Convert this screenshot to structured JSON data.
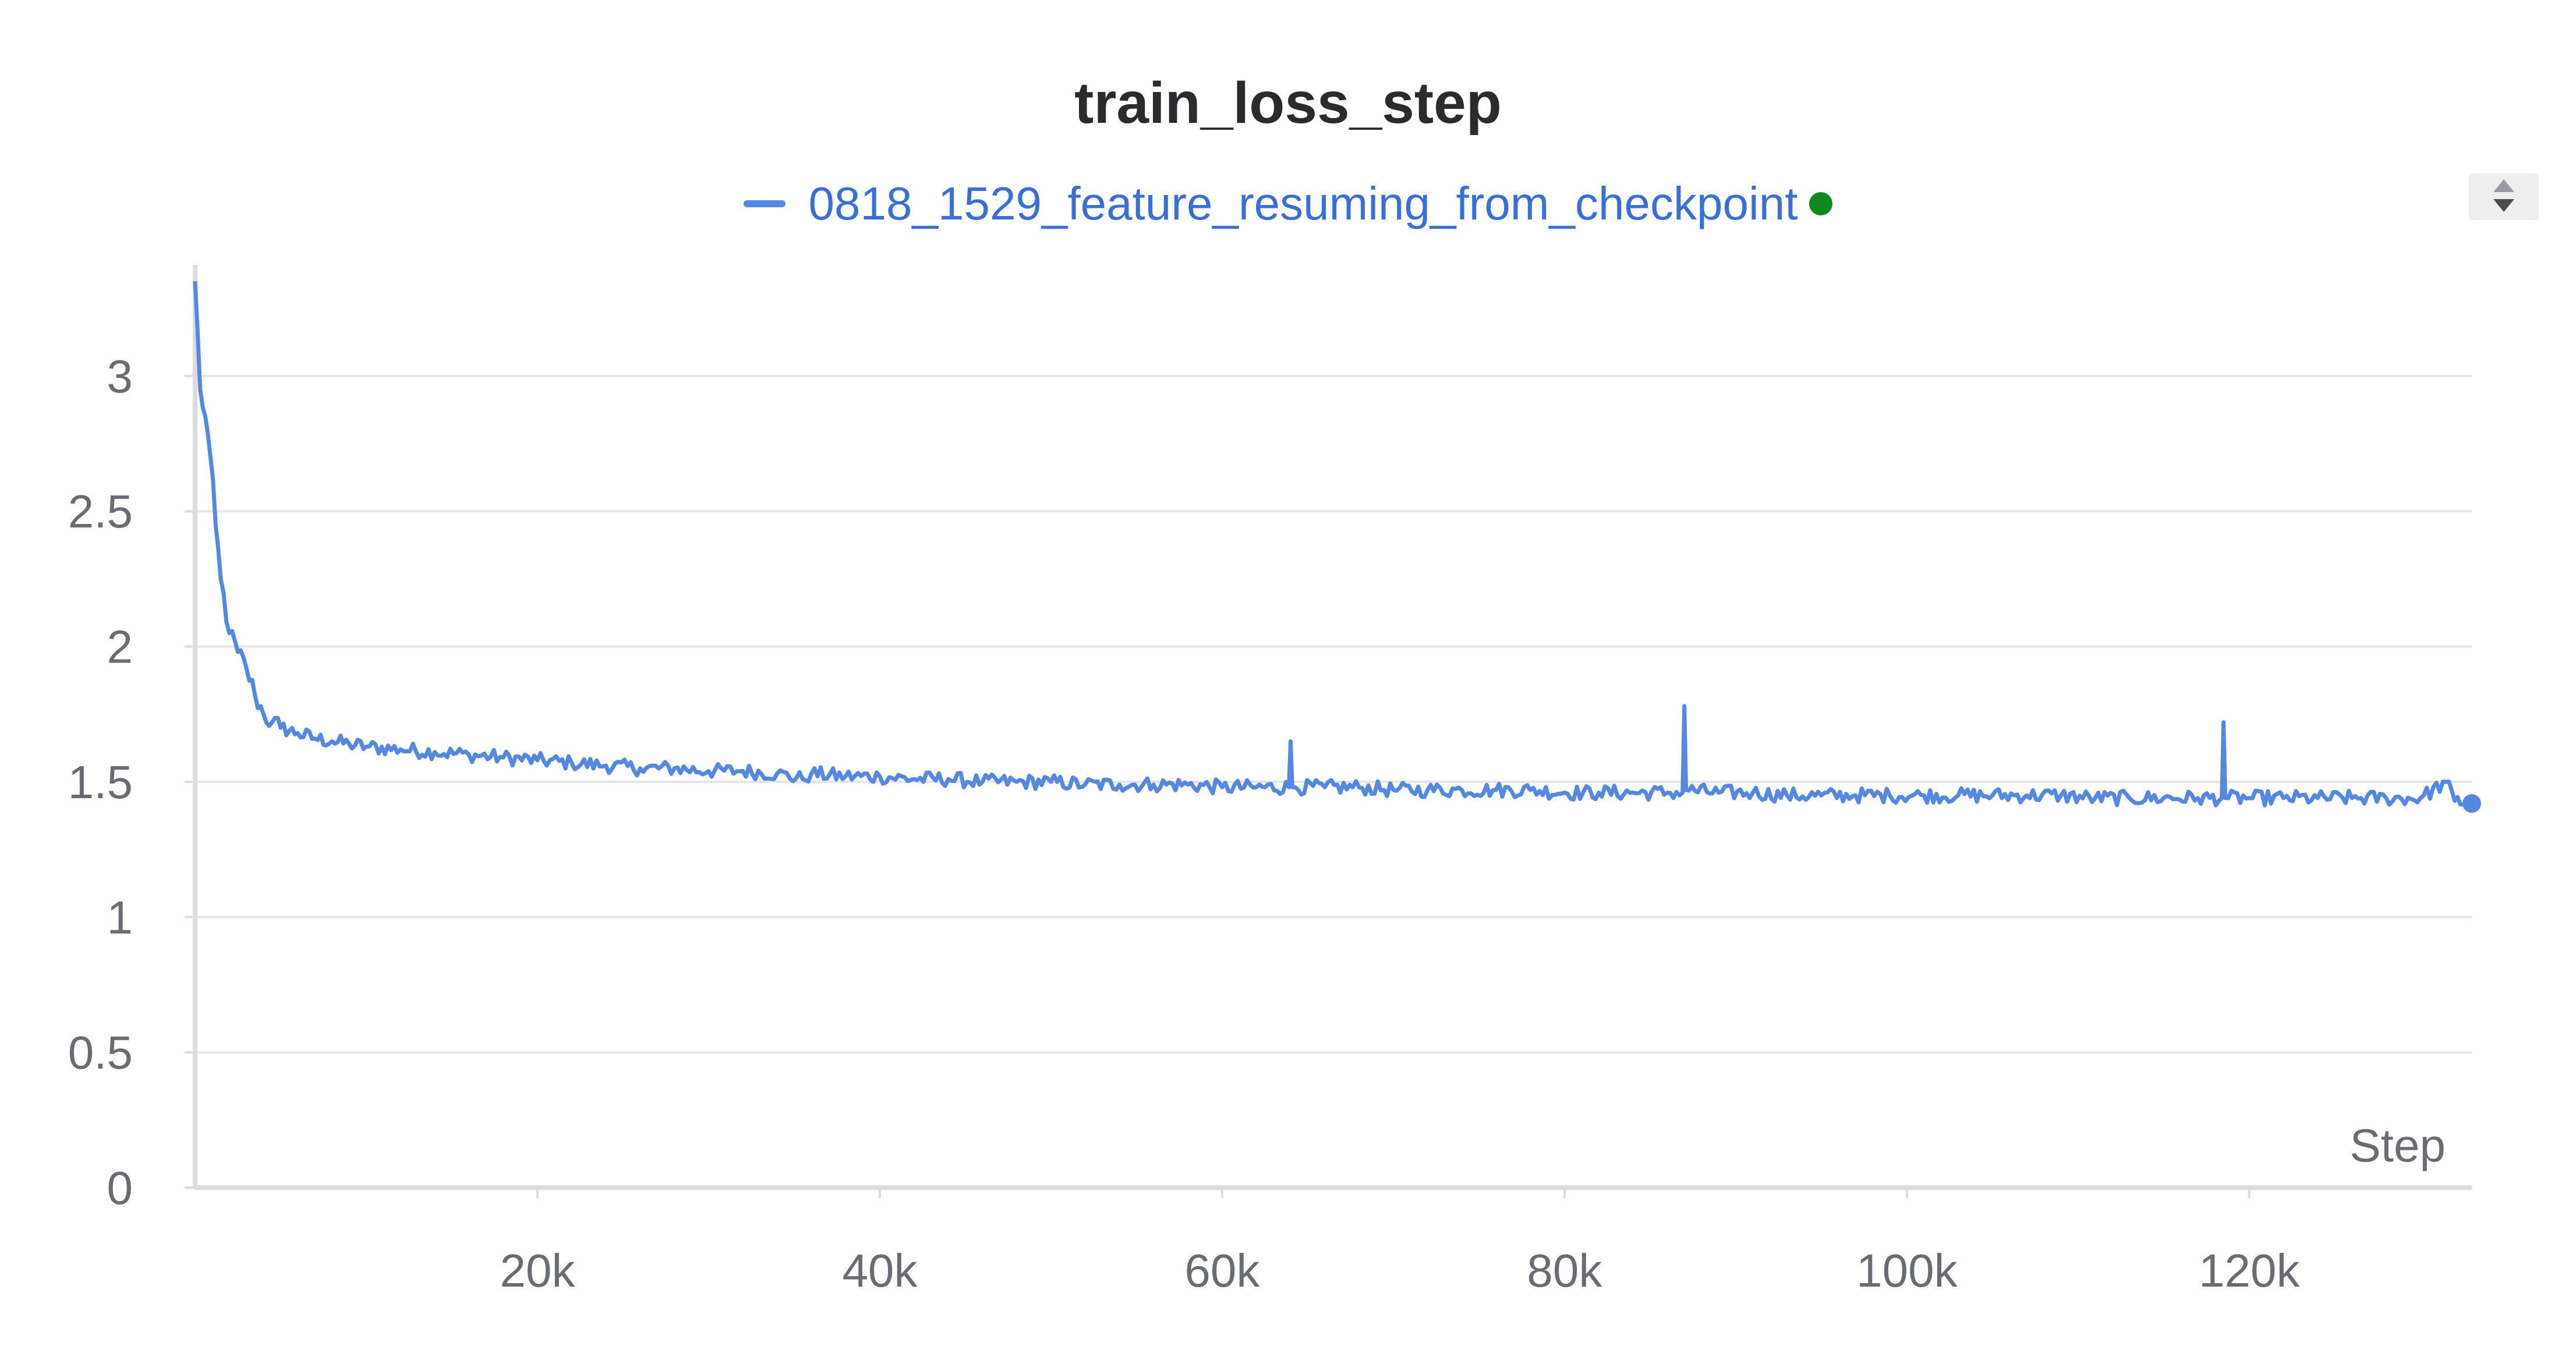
{
  "chart_data": {
    "type": "line",
    "title": "train_loss_step",
    "xlabel": "Step",
    "ylabel": "",
    "xlim": [
      0,
      133000
    ],
    "ylim": [
      0,
      3.4
    ],
    "x_ticks": [
      20000,
      40000,
      60000,
      80000,
      100000,
      120000
    ],
    "x_tick_labels": [
      "20k",
      "40k",
      "60k",
      "80k",
      "100k",
      "120k"
    ],
    "y_ticks": [
      0,
      0.5,
      1,
      1.5,
      2,
      2.5,
      3
    ],
    "y_tick_labels": [
      "0",
      "0.5",
      "1",
      "1.5",
      "2",
      "2.5",
      "3"
    ],
    "grid": true,
    "legend_position": "top-center",
    "series": [
      {
        "name": "0818_1529_feature_resuming_from_checkpoint",
        "color": "#5588e0",
        "x": [
          0,
          300,
          600,
          900,
          1200,
          1500,
          2000,
          2500,
          3000,
          3500,
          4000,
          4500,
          5000,
          6000,
          7000,
          8000,
          9000,
          10000,
          12000,
          14000,
          16000,
          18000,
          20000,
          22000,
          24000,
          26000,
          28000,
          30000,
          32000,
          34000,
          35500,
          36000,
          38000,
          40000,
          42000,
          44000,
          46000,
          48000,
          50000,
          52000,
          54000,
          56000,
          58000,
          60000,
          62000,
          63900,
          64000,
          64100,
          66000,
          68000,
          70000,
          72000,
          74000,
          76000,
          78000,
          80000,
          82000,
          84000,
          86000,
          86900,
          87000,
          87100,
          89000,
          91000,
          93000,
          95000,
          97000,
          99000,
          101000,
          103000,
          105000,
          107000,
          109000,
          111000,
          113000,
          115000,
          117000,
          118400,
          118500,
          118600,
          120000,
          122000,
          124000,
          126000,
          128000,
          130000,
          131500,
          132000,
          133000
        ],
        "y": [
          3.35,
          2.95,
          2.85,
          2.7,
          2.45,
          2.25,
          2.05,
          1.98,
          1.92,
          1.82,
          1.75,
          1.72,
          1.7,
          1.68,
          1.66,
          1.65,
          1.64,
          1.63,
          1.62,
          1.61,
          1.6,
          1.59,
          1.58,
          1.57,
          1.56,
          1.55,
          1.55,
          1.54,
          1.54,
          1.53,
          1.51,
          1.53,
          1.52,
          1.52,
          1.51,
          1.51,
          1.5,
          1.5,
          1.5,
          1.49,
          1.49,
          1.49,
          1.49,
          1.48,
          1.48,
          1.48,
          1.65,
          1.48,
          1.48,
          1.48,
          1.47,
          1.47,
          1.47,
          1.47,
          1.47,
          1.46,
          1.46,
          1.46,
          1.46,
          1.46,
          1.78,
          1.47,
          1.46,
          1.46,
          1.45,
          1.45,
          1.45,
          1.45,
          1.45,
          1.45,
          1.45,
          1.45,
          1.45,
          1.44,
          1.44,
          1.44,
          1.44,
          1.44,
          1.72,
          1.44,
          1.44,
          1.44,
          1.44,
          1.44,
          1.44,
          1.44,
          1.5,
          1.43,
          1.42
        ]
      }
    ]
  }
}
